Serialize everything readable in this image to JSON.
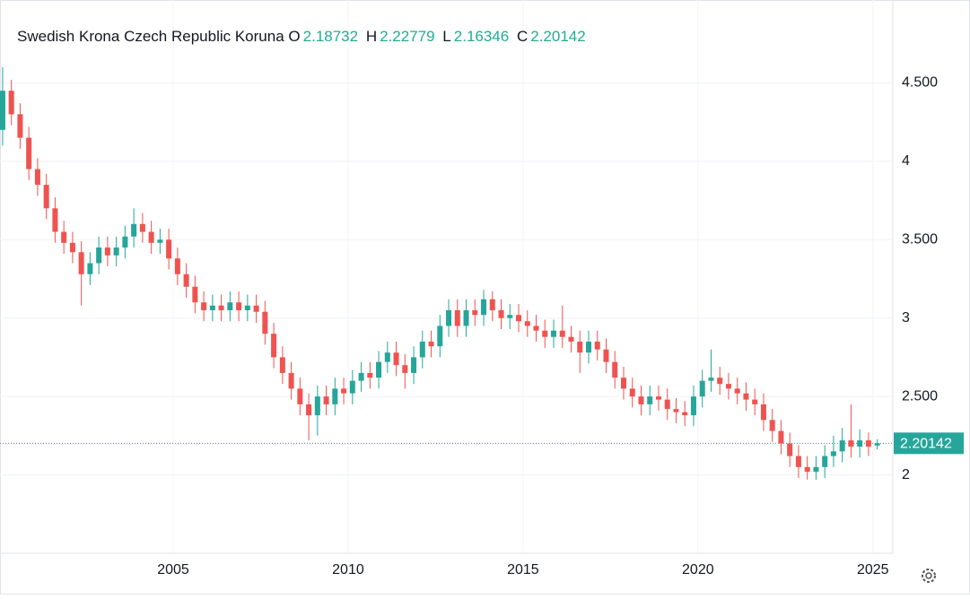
{
  "chart_data": {
    "type": "candlestick",
    "title": "Swedish Krona Czech Republic Koruna",
    "ohlc_labels": [
      "O",
      "H",
      "L",
      "C"
    ],
    "up_color": "#26a69a",
    "down_color": "#ef5350",
    "grid": true,
    "xlim": [
      2000.05,
      2025.57
    ],
    "xticks": [
      2005,
      2010,
      2015,
      2020,
      2025
    ],
    "ylim": [
      1.5,
      5
    ],
    "yticks": [
      2,
      {
        "value": 2.5,
        "label": "2.500"
      },
      3,
      {
        "value": 3.5,
        "label": "3.500"
      },
      4,
      {
        "value": 4.5,
        "label": "4.500"
      }
    ],
    "x": [
      2000.125,
      2000.375,
      2000.625,
      2000.875,
      2001.125,
      2001.375,
      2001.625,
      2001.875,
      2002.125,
      2002.375,
      2002.625,
      2002.875,
      2003.125,
      2003.375,
      2003.625,
      2003.875,
      2004.125,
      2004.375,
      2004.625,
      2004.875,
      2005.125,
      2005.375,
      2005.625,
      2005.875,
      2006.125,
      2006.375,
      2006.625,
      2006.875,
      2007.125,
      2007.375,
      2007.625,
      2007.875,
      2008.125,
      2008.375,
      2008.625,
      2008.875,
      2009.125,
      2009.375,
      2009.625,
      2009.875,
      2010.125,
      2010.375,
      2010.625,
      2010.875,
      2011.125,
      2011.375,
      2011.625,
      2011.875,
      2012.125,
      2012.375,
      2012.625,
      2012.875,
      2013.125,
      2013.375,
      2013.625,
      2013.875,
      2014.125,
      2014.375,
      2014.625,
      2014.875,
      2015.125,
      2015.375,
      2015.625,
      2015.875,
      2016.125,
      2016.375,
      2016.625,
      2016.875,
      2017.125,
      2017.375,
      2017.625,
      2017.875,
      2018.125,
      2018.375,
      2018.625,
      2018.875,
      2019.125,
      2019.375,
      2019.625,
      2019.875,
      2020.125,
      2020.375,
      2020.625,
      2020.875,
      2021.125,
      2021.375,
      2021.625,
      2021.875,
      2022.125,
      2022.375,
      2022.625,
      2022.875,
      2023.125,
      2023.375,
      2023.625,
      2023.875,
      2024.125,
      2024.375,
      2024.625,
      2024.875,
      2025.125
    ],
    "open": [
      4.2,
      4.45,
      4.3,
      4.15,
      3.95,
      3.85,
      3.7,
      3.55,
      3.48,
      3.42,
      3.28,
      3.35,
      3.45,
      3.4,
      3.45,
      3.52,
      3.6,
      3.55,
      3.48,
      3.5,
      3.38,
      3.28,
      3.2,
      3.1,
      3.05,
      3.08,
      3.05,
      3.1,
      3.05,
      3.08,
      3.04,
      2.9,
      2.75,
      2.65,
      2.55,
      2.45,
      2.38,
      2.5,
      2.45,
      2.55,
      2.52,
      2.6,
      2.65,
      2.62,
      2.72,
      2.78,
      2.7,
      2.65,
      2.75,
      2.85,
      2.82,
      2.95,
      3.05,
      2.95,
      3.05,
      3.02,
      3.12,
      3.05,
      3.0,
      3.02,
      2.98,
      2.95,
      2.92,
      2.88,
      2.92,
      2.88,
      2.85,
      2.78,
      2.85,
      2.8,
      2.72,
      2.62,
      2.55,
      2.5,
      2.45,
      2.5,
      2.48,
      2.42,
      2.4,
      2.38,
      2.5,
      2.6,
      2.62,
      2.58,
      2.55,
      2.52,
      2.48,
      2.45,
      2.35,
      2.28,
      2.2,
      2.12,
      2.05,
      2.02,
      2.05,
      2.12,
      2.15,
      2.22,
      2.18,
      2.22,
      2.18732
    ],
    "high": [
      4.6,
      4.52,
      4.37,
      4.22,
      4.02,
      3.92,
      3.77,
      3.62,
      3.55,
      3.49,
      3.42,
      3.52,
      3.52,
      3.52,
      3.59,
      3.7,
      3.67,
      3.62,
      3.57,
      3.57,
      3.45,
      3.35,
      3.27,
      3.17,
      3.15,
      3.15,
      3.17,
      3.17,
      3.15,
      3.15,
      3.11,
      2.97,
      2.82,
      2.72,
      2.62,
      2.52,
      2.57,
      2.57,
      2.62,
      2.62,
      2.67,
      2.72,
      2.72,
      2.79,
      2.85,
      2.85,
      2.77,
      2.82,
      2.92,
      2.92,
      3.02,
      3.12,
      3.12,
      3.12,
      3.12,
      3.18,
      3.17,
      3.12,
      3.09,
      3.09,
      3.05,
      3.02,
      2.99,
      2.99,
      3.08,
      2.95,
      2.92,
      2.92,
      2.92,
      2.87,
      2.79,
      2.69,
      2.62,
      2.57,
      2.57,
      2.57,
      2.55,
      2.49,
      2.47,
      2.57,
      2.67,
      2.8,
      2.69,
      2.65,
      2.62,
      2.59,
      2.55,
      2.52,
      2.42,
      2.35,
      2.27,
      2.19,
      2.12,
      2.12,
      2.19,
      2.25,
      2.3,
      2.45,
      2.29,
      2.27,
      2.22779
    ],
    "low": [
      4.1,
      4.23,
      4.08,
      3.88,
      3.78,
      3.63,
      3.48,
      3.41,
      3.35,
      3.08,
      3.21,
      3.28,
      3.33,
      3.33,
      3.38,
      3.45,
      3.48,
      3.41,
      3.41,
      3.31,
      3.21,
      3.13,
      3.03,
      2.98,
      2.98,
      2.98,
      2.98,
      2.98,
      2.98,
      2.97,
      2.83,
      2.68,
      2.58,
      2.48,
      2.38,
      2.22,
      2.25,
      2.38,
      2.38,
      2.45,
      2.45,
      2.53,
      2.55,
      2.55,
      2.65,
      2.63,
      2.55,
      2.58,
      2.68,
      2.75,
      2.75,
      2.88,
      2.88,
      2.88,
      2.95,
      2.95,
      2.98,
      2.93,
      2.93,
      2.91,
      2.88,
      2.85,
      2.81,
      2.81,
      2.81,
      2.78,
      2.65,
      2.71,
      2.73,
      2.65,
      2.55,
      2.48,
      2.43,
      2.38,
      2.38,
      2.41,
      2.35,
      2.33,
      2.31,
      2.31,
      2.43,
      2.53,
      2.51,
      2.48,
      2.45,
      2.41,
      2.38,
      2.28,
      2.21,
      2.13,
      2.05,
      1.98,
      1.97,
      1.97,
      1.98,
      2.05,
      2.08,
      2.11,
      2.11,
      2.12,
      2.16346
    ],
    "close": [
      4.45,
      4.3,
      4.15,
      3.95,
      3.85,
      3.7,
      3.55,
      3.48,
      3.42,
      3.28,
      3.35,
      3.45,
      3.4,
      3.45,
      3.52,
      3.6,
      3.55,
      3.48,
      3.5,
      3.38,
      3.28,
      3.2,
      3.1,
      3.05,
      3.08,
      3.05,
      3.1,
      3.05,
      3.08,
      3.04,
      2.9,
      2.75,
      2.65,
      2.55,
      2.45,
      2.38,
      2.5,
      2.45,
      2.55,
      2.52,
      2.6,
      2.65,
      2.62,
      2.72,
      2.78,
      2.7,
      2.65,
      2.75,
      2.85,
      2.82,
      2.95,
      3.05,
      2.95,
      3.05,
      3.02,
      3.12,
      3.05,
      3.0,
      3.02,
      2.98,
      2.95,
      2.92,
      2.88,
      2.92,
      2.88,
      2.85,
      2.78,
      2.85,
      2.8,
      2.72,
      2.62,
      2.55,
      2.5,
      2.45,
      2.5,
      2.48,
      2.42,
      2.4,
      2.38,
      2.5,
      2.6,
      2.62,
      2.58,
      2.55,
      2.52,
      2.48,
      2.45,
      2.35,
      2.28,
      2.2,
      2.12,
      2.05,
      2.02,
      2.05,
      2.12,
      2.15,
      2.22,
      2.18,
      2.22,
      2.18,
      2.20142
    ]
  }
}
